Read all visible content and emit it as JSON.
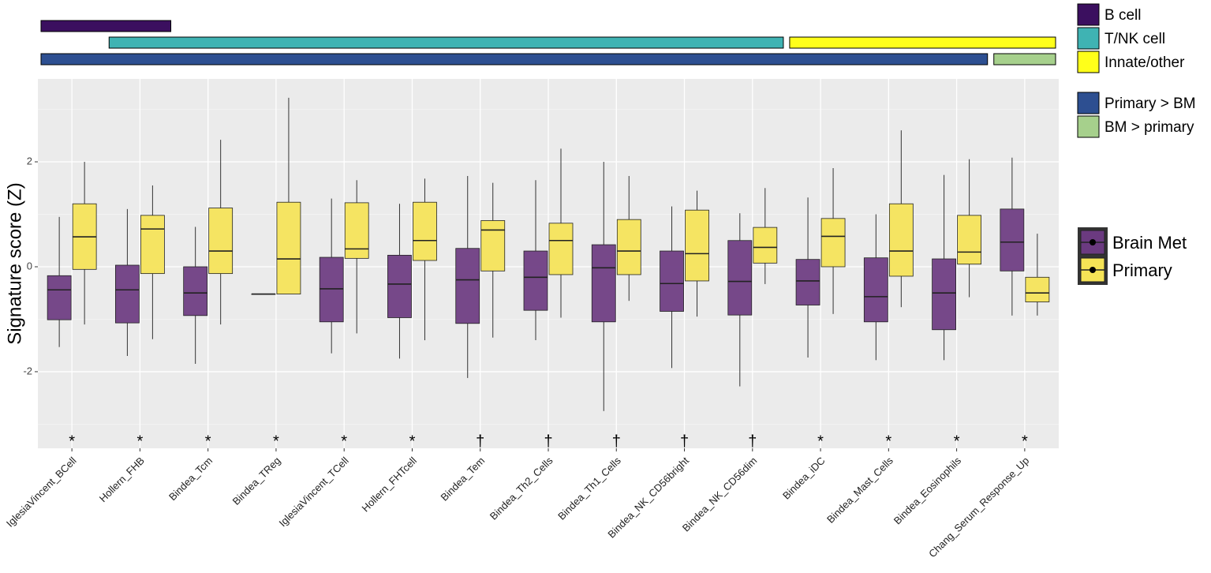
{
  "chart_data": {
    "type": "box",
    "ylabel": "Signature score (Z)",
    "categories": [
      "IglesiaVincent_BCell",
      "Hollern_FHB",
      "Bindea_Tcm",
      "Bindea_TReg",
      "IglesiaVincent_TCell",
      "Hollern_FHTcell",
      "Bindea_Tem",
      "Bindea_Th2_Cells",
      "Bindea_Th1_Cells",
      "Bindea_NK_CD56bright",
      "Bindea_NK_CD56dim",
      "Bindea_iDC",
      "Bindea_Mast_Cells",
      "Bindea_Eosinophils",
      "Chang_Serum_Response_Up"
    ],
    "series": [
      {
        "name": "Brain Met",
        "color": "#6b3a80",
        "values": [
          [
            -1.53,
            -1.01,
            -0.44,
            -0.17,
            0.95
          ],
          [
            -1.7,
            -1.07,
            -0.44,
            0.03,
            1.1
          ],
          [
            -1.85,
            -0.93,
            -0.5,
            0.0,
            0.76
          ],
          [
            -0.52,
            -0.52,
            -0.52,
            -0.52,
            -0.52
          ],
          [
            -1.65,
            -1.05,
            -0.42,
            0.18,
            1.3
          ],
          [
            -1.75,
            -0.97,
            -0.33,
            0.22,
            1.2
          ],
          [
            -2.12,
            -1.08,
            -0.25,
            0.35,
            1.73
          ],
          [
            -1.4,
            -0.83,
            -0.2,
            0.3,
            1.65
          ],
          [
            -2.75,
            -1.05,
            -0.02,
            0.42,
            2.0
          ],
          [
            -1.93,
            -0.85,
            -0.32,
            0.3,
            1.15
          ],
          [
            -2.28,
            -0.92,
            -0.28,
            0.5,
            1.02
          ],
          [
            -1.73,
            -0.73,
            -0.27,
            0.14,
            1.32
          ],
          [
            -1.78,
            -1.05,
            -0.57,
            0.17,
            1.0
          ],
          [
            -1.78,
            -1.2,
            -0.5,
            0.15,
            1.75
          ],
          [
            -0.93,
            -0.08,
            0.47,
            1.1,
            2.08
          ]
        ]
      },
      {
        "name": "Primary",
        "color": "#f5e356",
        "values": [
          [
            -1.1,
            -0.05,
            0.57,
            1.2,
            2.0
          ],
          [
            -1.38,
            -0.13,
            0.72,
            0.98,
            1.55
          ],
          [
            -1.1,
            -0.13,
            0.3,
            1.12,
            2.42
          ],
          [
            -0.52,
            -0.52,
            0.15,
            1.23,
            3.22
          ],
          [
            -1.27,
            0.16,
            0.34,
            1.22,
            1.65
          ],
          [
            -1.4,
            0.12,
            0.5,
            1.23,
            1.68
          ],
          [
            -1.35,
            -0.08,
            0.7,
            0.88,
            1.6
          ],
          [
            -0.97,
            -0.15,
            0.5,
            0.83,
            2.25
          ],
          [
            -0.65,
            -0.15,
            0.3,
            0.9,
            1.73
          ],
          [
            -0.95,
            -0.27,
            0.25,
            1.08,
            1.45
          ],
          [
            -0.33,
            0.07,
            0.37,
            0.75,
            1.5
          ],
          [
            -0.9,
            0.0,
            0.58,
            0.92,
            1.88
          ],
          [
            -0.77,
            -0.18,
            0.3,
            1.2,
            2.6
          ],
          [
            -0.58,
            0.05,
            0.28,
            0.98,
            2.05
          ],
          [
            -0.93,
            -0.67,
            -0.5,
            -0.2,
            0.63
          ]
        ]
      }
    ],
    "annotations": [
      "*",
      "*",
      "*",
      "*",
      "*",
      "*",
      "†",
      "†",
      "†",
      "†",
      "†",
      "*",
      "*",
      "*",
      "*"
    ],
    "bar_rows": [
      [
        {
          "name": "B cell",
          "color": "#3b0f5f",
          "from": "IglesiaVincent_BCell",
          "to": "Hollern_FHB"
        }
      ],
      [
        {
          "name": "T/NK cell",
          "color": "#3fb3b3",
          "from": "Hollern_FHB",
          "to": "Bindea_NK_CD56dim"
        },
        {
          "name": "Innate/other",
          "color": "#ffff1a",
          "from": "Bindea_iDC",
          "to": "Chang_Serum_Response_Up"
        }
      ],
      [
        {
          "name": "Primary > BM",
          "color": "#2d4f91",
          "from": "IglesiaVincent_BCell",
          "to": "Bindea_Eosinophils"
        },
        {
          "name": "BM > primary",
          "color": "#a6d08c",
          "from": "Chang_Serum_Response_Up",
          "to": "Chang_Serum_Response_Up"
        }
      ]
    ],
    "ylim": [
      -3.46,
      3.58
    ],
    "yticks": [
      -2,
      0,
      2
    ],
    "grid": true
  }
}
